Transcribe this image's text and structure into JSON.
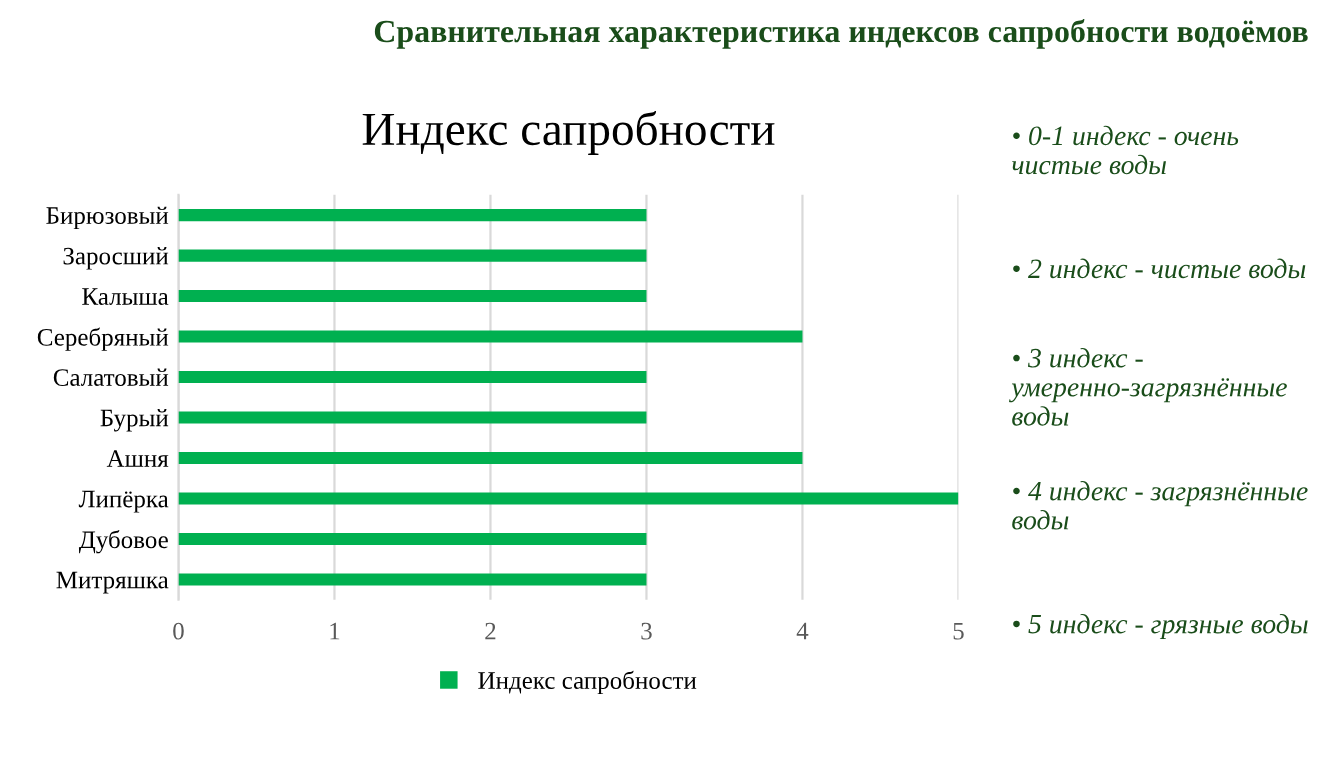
{
  "chart_data": {
    "type": "bar",
    "orientation": "horizontal",
    "title": "Индекс сапробности",
    "subtitle": "Сравнительная характеристика индексов сапробности водоёмов",
    "categories": [
      "Бирюзовый",
      "Заросший",
      "Калыша",
      "Серебряный",
      "Салатовый",
      "Бурый",
      "Ашня",
      "Липёрка",
      "Дубовое",
      "Митряшка"
    ],
    "series": [
      {
        "name": "Индекс сапробности",
        "color": "#00b050",
        "values": [
          3,
          3,
          3,
          4,
          3,
          3,
          4,
          5,
          3,
          3
        ]
      }
    ],
    "xlim": [
      0,
      5
    ],
    "xticks": [
      0,
      1,
      2,
      3,
      4,
      5
    ],
    "grid": "x",
    "legend": "bottom",
    "annotations": [
      "• 0-1 индекс - очень чистые воды",
      "• 2 индекс - чистые воды",
      "• 3 индекс - умеренно-загрязнённые воды",
      "• 4 индекс - загрязнённые воды",
      "• 5 индекс - грязные воды"
    ]
  }
}
